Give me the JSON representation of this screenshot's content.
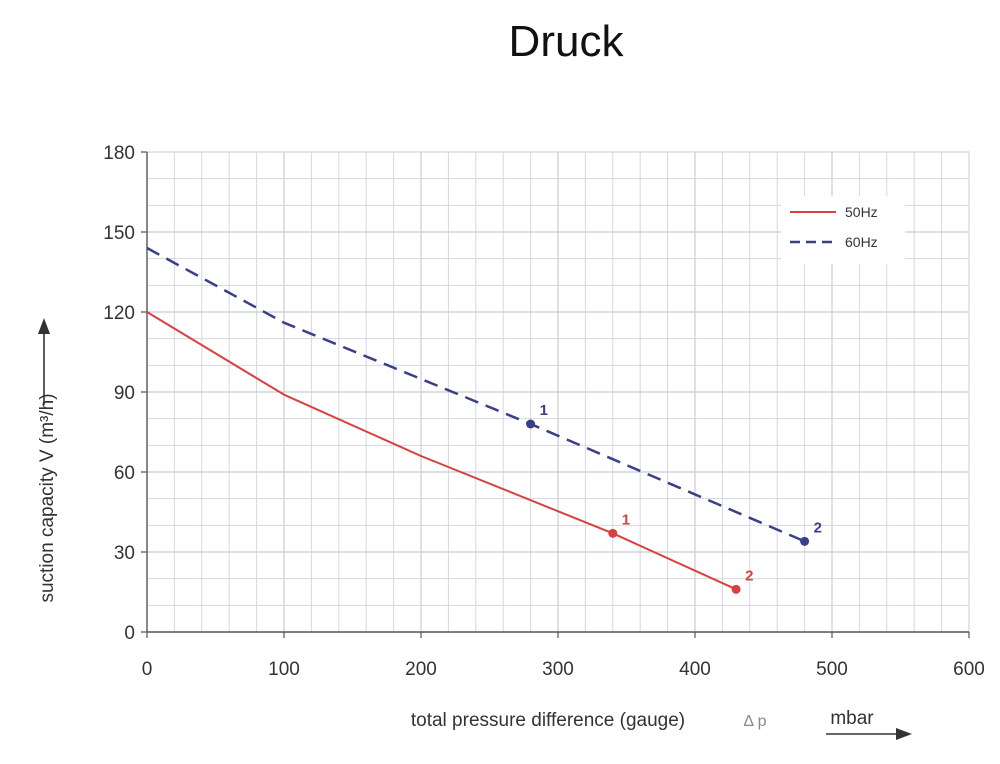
{
  "chart_data": {
    "type": "line",
    "title": "Druck",
    "xlabel": "total pressure difference (gauge)",
    "xlabel_symbol": "Δ p",
    "xunit": "mbar",
    "ylabel": "suction capacity V (m³/h)",
    "xlim": [
      0,
      600
    ],
    "ylim": [
      0,
      180
    ],
    "xticks": [
      0,
      100,
      200,
      300,
      400,
      500,
      600
    ],
    "yticks": [
      0,
      30,
      60,
      90,
      120,
      150,
      180
    ],
    "grid": true,
    "legend_position": "top-right",
    "series": [
      {
        "name": "50Hz",
        "color": "#d94040",
        "style": "solid",
        "x": [
          0,
          100,
          200,
          340,
          430
        ],
        "y": [
          120,
          89,
          66,
          37,
          16
        ],
        "marked_points": [
          {
            "label": "1",
            "x": 340,
            "y": 37
          },
          {
            "label": "2",
            "x": 430,
            "y": 16
          }
        ]
      },
      {
        "name": "60Hz",
        "color": "#3a3f8a",
        "style": "dashed",
        "x": [
          0,
          100,
          280,
          480
        ],
        "y": [
          144,
          116,
          78,
          34
        ],
        "marked_points": [
          {
            "label": "1",
            "x": 280,
            "y": 78
          },
          {
            "label": "2",
            "x": 480,
            "y": 34
          }
        ]
      }
    ]
  }
}
